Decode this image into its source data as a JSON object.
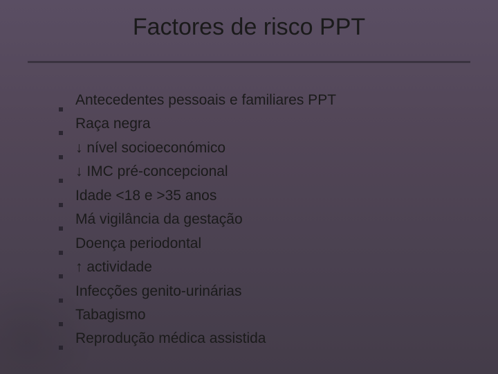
{
  "slide": {
    "title": "Factores de risco PPT",
    "title_fontsize": 34,
    "title_color": "#1a1a1a",
    "background_gradient_top": "#5a4e63",
    "background_gradient_bottom": "#443c49",
    "divider_color": "#3a3340",
    "bullet_color": "#2a2530",
    "item_fontsize": 21,
    "item_color": "#1a1a1a",
    "items": [
      "Antecedentes pessoais e familiares PPT",
      "Raça negra",
      "↓ nível socioeconómico",
      "↓ IMC pré-concepcional",
      "Idade <18 e >35 anos",
      "Má vigilância da gestação",
      "Doença periodontal",
      "↑ actividade",
      "Infecções genito-urinárias",
      "Tabagismo",
      "Reprodução médica assistida"
    ]
  }
}
